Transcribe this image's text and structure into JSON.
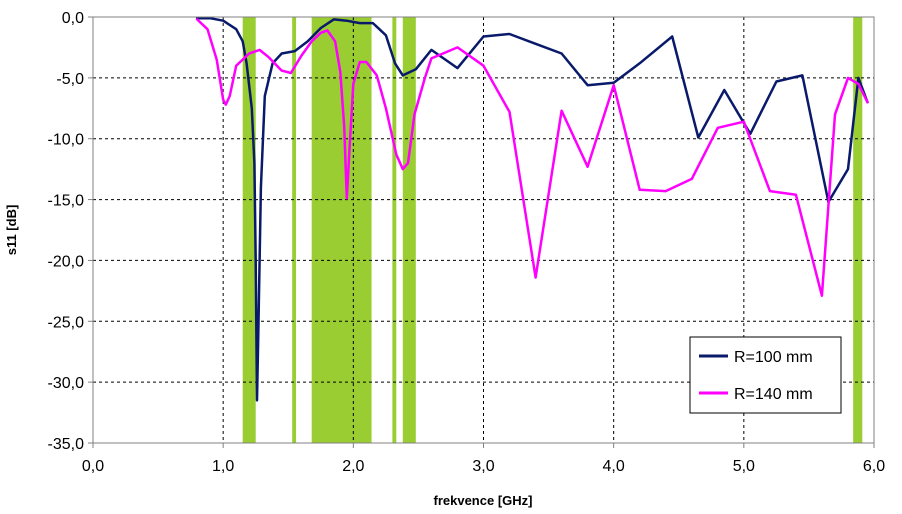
{
  "chart_data": {
    "type": "line",
    "title": "",
    "xlabel": "frekvence [GHz]",
    "ylabel": "s11 [dB]",
    "xlim": [
      0,
      6
    ],
    "ylim": [
      -35,
      0
    ],
    "x_ticks": [
      0,
      1,
      2,
      3,
      4,
      5,
      6
    ],
    "x_tick_labels": [
      "0,0",
      "1,0",
      "2,0",
      "3,0",
      "4,0",
      "5,0",
      "6,0"
    ],
    "y_ticks": [
      0,
      -5,
      -10,
      -15,
      -20,
      -25,
      -30,
      -35
    ],
    "y_tick_labels": [
      "0,0",
      "-5,0",
      "-10,0",
      "-15,0",
      "-20,0",
      "-25,0",
      "-30,0",
      "-35,0"
    ],
    "grid": true,
    "legend_position": "bottom-right",
    "highlight_color": "#9acd32",
    "highlight_bands": [
      [
        1.15,
        1.25
      ],
      [
        1.53,
        1.56
      ],
      [
        1.68,
        2.14
      ],
      [
        2.3,
        2.33
      ],
      [
        2.38,
        2.48
      ],
      [
        5.84,
        5.91
      ]
    ],
    "series": [
      {
        "name": "R=100 mm",
        "color": "#0a1a6b",
        "x": [
          0.8,
          0.9,
          1.0,
          1.1,
          1.15,
          1.18,
          1.22,
          1.24,
          1.25,
          1.26,
          1.27,
          1.29,
          1.32,
          1.38,
          1.45,
          1.55,
          1.65,
          1.75,
          1.85,
          1.95,
          2.05,
          2.15,
          2.25,
          2.32,
          2.38,
          2.48,
          2.6,
          2.8,
          3.0,
          3.2,
          3.4,
          3.6,
          3.8,
          4.0,
          4.2,
          4.45,
          4.65,
          4.85,
          5.05,
          5.25,
          5.45,
          5.65,
          5.8,
          5.88,
          5.95
        ],
        "values": [
          -0.1,
          -0.1,
          -0.3,
          -1.0,
          -2.0,
          -3.8,
          -7.5,
          -12.0,
          -20.0,
          -31.5,
          -26.0,
          -14.0,
          -6.5,
          -3.8,
          -3.0,
          -2.8,
          -2.0,
          -0.9,
          -0.2,
          -0.3,
          -0.5,
          -0.5,
          -1.5,
          -3.8,
          -4.8,
          -4.3,
          -2.7,
          -4.2,
          -1.6,
          -1.4,
          -2.2,
          -3.0,
          -5.6,
          -5.4,
          -3.8,
          -1.6,
          -9.9,
          -6.0,
          -9.6,
          -5.3,
          -4.8,
          -15.2,
          -12.5,
          -5.0,
          -7.0
        ]
      },
      {
        "name": "R=140 mm",
        "color": "#ff00ff",
        "x": [
          0.8,
          0.88,
          0.95,
          1.0,
          1.02,
          1.05,
          1.1,
          1.2,
          1.28,
          1.35,
          1.45,
          1.52,
          1.6,
          1.68,
          1.75,
          1.8,
          1.86,
          1.9,
          1.93,
          1.95,
          1.97,
          2.0,
          2.05,
          2.1,
          2.18,
          2.25,
          2.33,
          2.38,
          2.42,
          2.47,
          2.55,
          2.6,
          2.8,
          3.0,
          3.2,
          3.4,
          3.6,
          3.8,
          4.0,
          4.2,
          4.4,
          4.6,
          4.8,
          5.0,
          5.2,
          5.4,
          5.6,
          5.7,
          5.8,
          5.88,
          5.95
        ],
        "values": [
          -0.2,
          -1.0,
          -3.5,
          -6.8,
          -7.2,
          -6.5,
          -4.0,
          -3.0,
          -2.7,
          -3.3,
          -4.4,
          -4.6,
          -3.2,
          -2.0,
          -1.3,
          -1.1,
          -2.0,
          -4.5,
          -9.0,
          -14.9,
          -11.0,
          -5.5,
          -3.7,
          -3.7,
          -4.8,
          -7.5,
          -11.3,
          -12.5,
          -12.0,
          -8.0,
          -5.0,
          -3.4,
          -2.5,
          -4.0,
          -7.8,
          -21.4,
          -7.7,
          -12.3,
          -5.6,
          -14.2,
          -14.3,
          -13.3,
          -9.1,
          -8.6,
          -14.3,
          -14.6,
          -22.9,
          -8.0,
          -5.0,
          -5.5,
          -7.0
        ]
      }
    ]
  }
}
